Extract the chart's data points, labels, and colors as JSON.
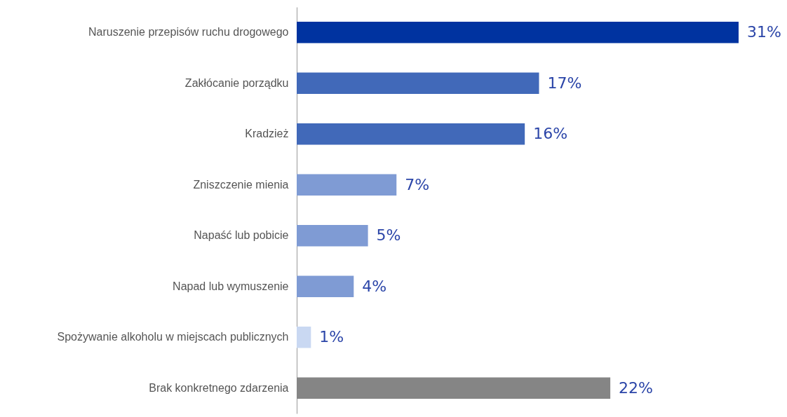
{
  "chart_data": {
    "type": "bar",
    "orientation": "horizontal",
    "relative": false,
    "categories": [
      "Naruszenie przepisów ruchu drogowego",
      "Zakłócanie porządku",
      "Kradzież",
      "Zniszczenie mienia",
      "Napaść lub pobicie",
      "Napad lub wymuszenie",
      "Spożywanie alkoholu w miejscach publicznych",
      "Brak konkretnego zdarzenia"
    ],
    "values": [
      31,
      17,
      16,
      7,
      5,
      4,
      1,
      22
    ],
    "value_labels": [
      "31%",
      "17%",
      "16%",
      "7%",
      "5%",
      "4%",
      "1%",
      "22%"
    ],
    "colors": [
      "#0033a0",
      "#4169b9",
      "#4169b9",
      "#7f9bd4",
      "#7f9bd4",
      "#7f9bd4",
      "#c9d8f2",
      "#858585"
    ]
  }
}
